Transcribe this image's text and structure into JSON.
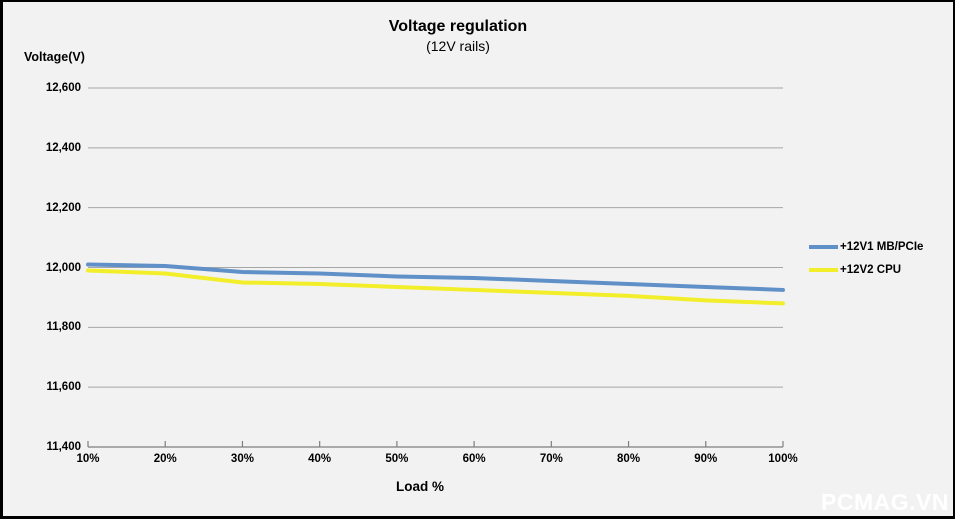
{
  "watermark": {
    "text": "PCMAG.VN",
    "color": "#ffffff"
  },
  "chart_data": {
    "type": "line",
    "title": "Voltage regulation",
    "subtitle": "(12V rails)",
    "ylabel": "Voltage(V)",
    "xlabel": "Load %",
    "categories": [
      "10%",
      "20%",
      "30%",
      "40%",
      "50%",
      "60%",
      "70%",
      "80%",
      "90%",
      "100%"
    ],
    "series": [
      {
        "name": "+12V1 MB/PCIe",
        "color": "#6090c8",
        "values": [
          12010,
          12005,
          11985,
          11980,
          11970,
          11965,
          11955,
          11945,
          11935,
          11925
        ]
      },
      {
        "name": "+12V2 CPU",
        "color": "#f2ee2a",
        "values": [
          11990,
          11980,
          11950,
          11945,
          11935,
          11925,
          11915,
          11905,
          11890,
          11880
        ]
      }
    ],
    "ylim": [
      11400,
      12600
    ],
    "ytick_step": 200,
    "ytick_labels": [
      "11,400",
      "11,600",
      "11,800",
      "12,000",
      "12,200",
      "12,400",
      "12,600"
    ],
    "grid": true,
    "gridline_color": "#a6a6a6",
    "axis_color": "#7f7f7f",
    "background_color": "#f2f2f2",
    "legend_position": "right"
  }
}
